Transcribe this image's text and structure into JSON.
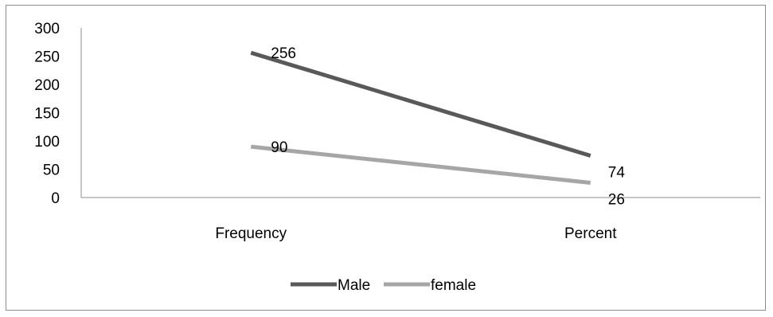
{
  "chart_data": {
    "type": "line",
    "categories": [
      "Frequency",
      "Percent"
    ],
    "series": [
      {
        "name": "Male",
        "values": [
          256,
          74
        ],
        "color": "#595959"
      },
      {
        "name": "female",
        "values": [
          90,
          26
        ],
        "color": "#a6a6a6"
      }
    ],
    "ylim": [
      0,
      300
    ],
    "yticks": [
      0,
      50,
      100,
      150,
      200,
      250,
      300
    ],
    "grid": false,
    "legend_position": "bottom"
  }
}
